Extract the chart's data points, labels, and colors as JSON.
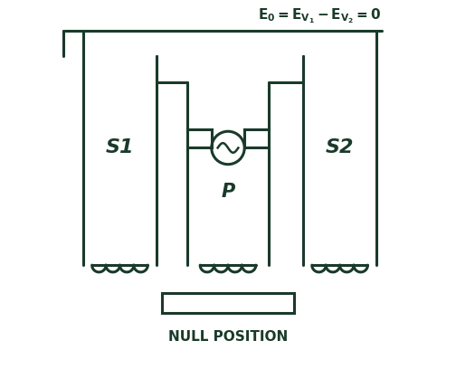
{
  "title": "NULL POSITION",
  "equation": "E$_0$ = E$_{V_1}$ - E$_{V_2}$ = 0",
  "s1_label": "S1",
  "s2_label": "S2",
  "p_label": "P",
  "line_color": "#1a3a2a",
  "text_color": "#1a3a2a",
  "bg_color": "#ffffff",
  "lw": 2.2,
  "fig_width": 5.04,
  "fig_height": 4.08,
  "dpi": 100
}
